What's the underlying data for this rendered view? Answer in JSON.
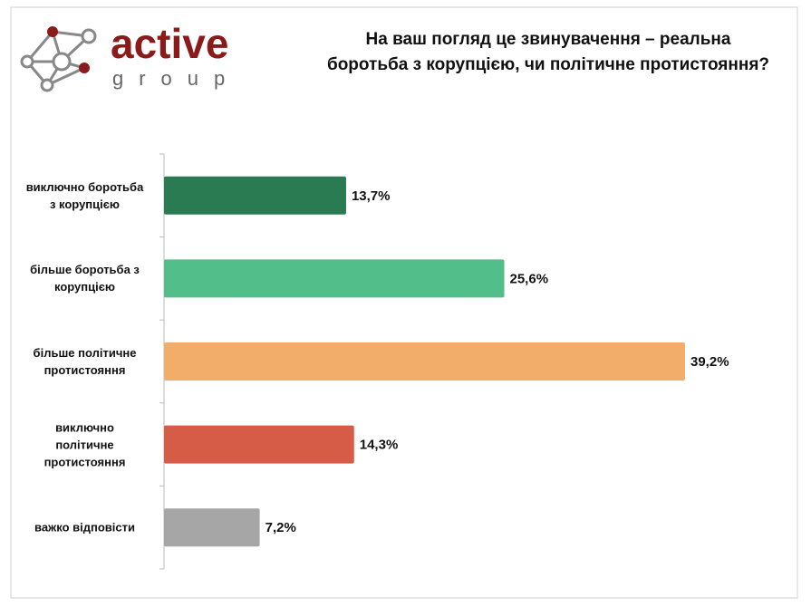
{
  "logo": {
    "name": "active",
    "subname": "group"
  },
  "chart_data": {
    "type": "hbar",
    "title": "На ваш погляд це звинувачення – реальна\nборотьба з корупцією, чи політичне протистояння?",
    "categories": [
      "виключно боротьба\nз корупцією",
      "більше боротьба з\nкорупцією",
      "більше політичне\nпротистояння",
      "виключно\nполітичне\nпротистояння",
      "важко відповісти"
    ],
    "values": [
      13.7,
      25.6,
      39.2,
      14.3,
      7.2
    ],
    "value_labels": [
      "13,7%",
      "25,6%",
      "39,2%",
      "14,3%",
      "7,2%"
    ],
    "colors": [
      "#2a7a52",
      "#52bf8a",
      "#f2ad6b",
      "#d75c47",
      "#a6a6a6"
    ]
  }
}
